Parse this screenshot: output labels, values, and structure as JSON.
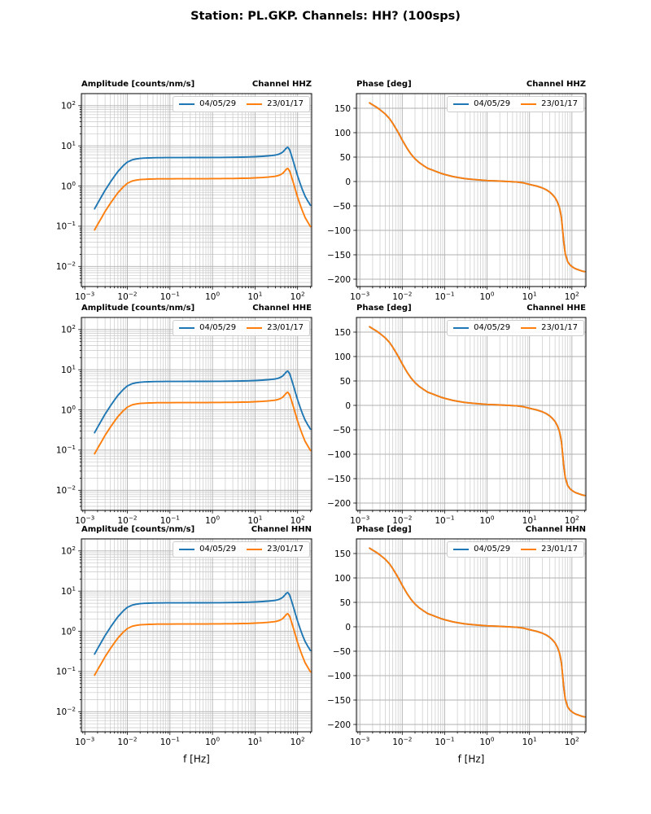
{
  "figure": {
    "title": "Station: PL.GKP. Channels: HH? (100sps)"
  },
  "legend": {
    "items": [
      {
        "label": "04/05/29",
        "color": "#1f77b4"
      },
      {
        "label": "23/01/17",
        "color": "#ff7f0e"
      }
    ]
  },
  "chart_data": {
    "type": "line",
    "x_label": "f [Hz]",
    "x_axis": {
      "scale": "log",
      "log10_min": -3.08,
      "log10_max": 2.33,
      "tick_exponents": [
        -3,
        -2,
        -1,
        0,
        1,
        2
      ]
    },
    "amplitude_axis": {
      "scale": "log",
      "log10_min": -2.5,
      "log10_max": 2.3,
      "tick_exponents": [
        2,
        1,
        0,
        -1,
        -2
      ],
      "label": "Amplitude [counts/nm/s]"
    },
    "phase_axis": {
      "scale": "linear",
      "min": -215,
      "max": 180,
      "ticks": [
        150,
        100,
        50,
        0,
        -50,
        -100,
        -150,
        -200
      ],
      "label": "Phase [deg]"
    },
    "grid": {
      "major_color": "#b0b0b0",
      "minor_color": "#c9c9c9",
      "which": "both"
    },
    "x_hz": [
      0.0017,
      0.002,
      0.0025,
      0.003,
      0.004,
      0.005,
      0.006,
      0.008,
      0.01,
      0.013,
      0.016,
      0.02,
      0.025,
      0.032,
      0.04,
      0.05,
      0.065,
      0.08,
      0.1,
      0.15,
      0.2,
      0.3,
      0.5,
      0.7,
      1,
      1.5,
      2,
      3,
      5,
      7,
      10,
      15,
      20,
      25,
      30,
      35,
      40,
      45,
      50,
      53,
      56,
      58,
      60,
      65,
      70,
      80,
      90,
      100,
      115,
      130,
      150,
      170,
      185,
      200
    ],
    "series": {
      "amplitude": [
        {
          "name": "04/05/29",
          "color": "#1f77b4",
          "values": [
            0.27,
            0.37,
            0.56,
            0.78,
            1.26,
            1.76,
            2.3,
            3.2,
            3.95,
            4.5,
            4.72,
            4.88,
            4.97,
            5.02,
            5.06,
            5.08,
            5.09,
            5.1,
            5.1,
            5.1,
            5.11,
            5.12,
            5.13,
            5.14,
            5.15,
            5.16,
            5.18,
            5.2,
            5.25,
            5.3,
            5.38,
            5.5,
            5.62,
            5.75,
            5.9,
            6.12,
            6.5,
            7.05,
            7.95,
            8.55,
            9.05,
            9.2,
            9.05,
            7.9,
            6.3,
            3.95,
            2.6,
            1.8,
            1.15,
            0.8,
            0.56,
            0.44,
            0.38,
            0.33
          ]
        },
        {
          "name": "23/01/17",
          "color": "#ff7f0e",
          "values": [
            0.081,
            0.11,
            0.166,
            0.232,
            0.374,
            0.52,
            0.68,
            0.95,
            1.17,
            1.34,
            1.4,
            1.45,
            1.47,
            1.49,
            1.5,
            1.51,
            1.51,
            1.51,
            1.51,
            1.52,
            1.52,
            1.52,
            1.52,
            1.52,
            1.53,
            1.53,
            1.54,
            1.54,
            1.56,
            1.57,
            1.6,
            1.63,
            1.67,
            1.71,
            1.75,
            1.82,
            1.93,
            2.09,
            2.36,
            2.54,
            2.69,
            2.73,
            2.69,
            2.35,
            1.87,
            1.17,
            0.77,
            0.53,
            0.34,
            0.24,
            0.166,
            0.131,
            0.113,
            0.098
          ]
        }
      ],
      "phase": [
        {
          "name": "04/05/29",
          "color": "#1f77b4",
          "values": [
            161,
            157,
            152,
            147,
            138,
            129,
            119,
            101,
            85,
            68,
            56.5,
            46.5,
            39,
            32.5,
            27,
            24,
            20,
            17,
            14.5,
            10.5,
            8.5,
            6,
            4,
            3,
            2,
            1.3,
            0.8,
            0.2,
            -1,
            -2.5,
            -6,
            -9.5,
            -13,
            -17,
            -21.5,
            -27,
            -33,
            -41,
            -51,
            -60,
            -72,
            -83,
            -96,
            -127,
            -148,
            -164.5,
            -170.5,
            -174,
            -177.5,
            -179.5,
            -181.5,
            -183,
            -184,
            -184.5
          ]
        },
        {
          "name": "23/01/17",
          "color": "#ff7f0e",
          "values": [
            161,
            157,
            152,
            147,
            138,
            129,
            119,
            101,
            85,
            68,
            56.5,
            46.5,
            39,
            32.5,
            27,
            24,
            20,
            17,
            14.5,
            10.5,
            8.5,
            6,
            4,
            3,
            2,
            1.3,
            0.8,
            0.2,
            -1,
            -2.5,
            -6,
            -9.5,
            -13,
            -17,
            -21.5,
            -27,
            -33,
            -41,
            -51,
            -60,
            -72,
            -83,
            -96,
            -127,
            -148,
            -164.5,
            -170.5,
            -174,
            -177.5,
            -179.5,
            -181.5,
            -183,
            -184,
            -184.5
          ]
        }
      ]
    },
    "subplots": [
      {
        "kind": "amplitude",
        "channel": "HHZ",
        "title_left": "Amplitude [counts/nm/s]",
        "title_right": "Channel HHZ",
        "show_xlabel": false
      },
      {
        "kind": "phase",
        "channel": "HHZ",
        "title_left": "Phase [deg]",
        "title_right": "Channel HHZ",
        "show_xlabel": false
      },
      {
        "kind": "amplitude",
        "channel": "HHE",
        "title_left": "Amplitude [counts/nm/s]",
        "title_right": "Channel HHE",
        "show_xlabel": false
      },
      {
        "kind": "phase",
        "channel": "HHE",
        "title_left": "Phase [deg]",
        "title_right": "Channel HHE",
        "show_xlabel": false
      },
      {
        "kind": "amplitude",
        "channel": "HHN",
        "title_left": "Amplitude [counts/nm/s]",
        "title_right": "Channel HHN",
        "show_xlabel": true
      },
      {
        "kind": "phase",
        "channel": "HHN",
        "title_left": "Phase [deg]",
        "title_right": "Channel HHN",
        "show_xlabel": true
      }
    ]
  }
}
